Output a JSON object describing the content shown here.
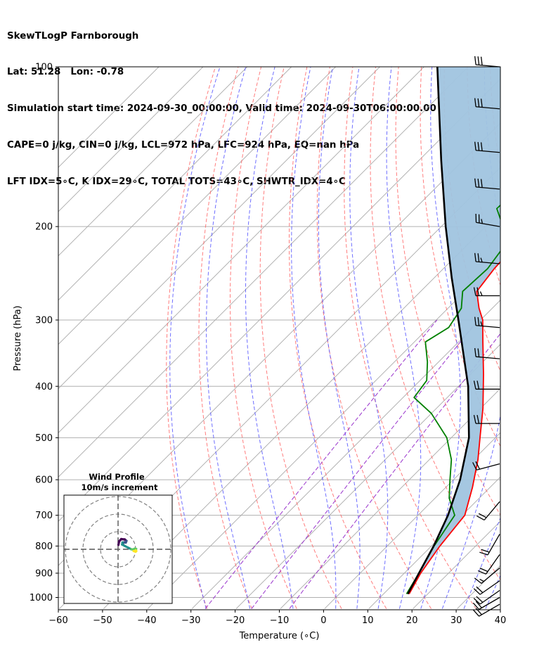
{
  "header": {
    "line1": "SkewTLogP Farnborough",
    "line2": "Lat: 51.28   Lon: -0.78",
    "line3": "Simulation start time: 2024-09-30_00:00:00, Valid time: 2024-09-30T06:00:00.00",
    "line4": "CAPE=0 j/kg, CIN=0 j/kg, LCL=972 hPa, LFC=924 hPa, EQ=nan hPa",
    "line5": "LFT IDX=5∘C, K IDX=29∘C, TOTAL TOTS=43∘C, SHWTR_IDX=4∘C"
  },
  "chart_data": {
    "type": "skewt-logp",
    "xlabel": "Temperature (∘C)",
    "ylabel": "Pressure (hPa)",
    "xlim": [
      -60,
      40
    ],
    "ylim": [
      1050,
      100
    ],
    "y_scale": "log",
    "grid": true,
    "x_ticks": [
      "−60",
      "−50",
      "−40",
      "−30",
      "−20",
      "−10",
      "0",
      "10",
      "20",
      "30",
      "40"
    ],
    "y_ticks": [
      100,
      200,
      300,
      400,
      500,
      600,
      700,
      800,
      900,
      1000
    ],
    "colors": {
      "temperature": "#ff0000",
      "dewpoint": "#008000",
      "parcel": "#000000",
      "cape_fill": "#a0c4df",
      "dry_adiabat": "#ff6666",
      "moist_adiabat": "#5555ff",
      "mixing_ratio": "#9933cc",
      "isotherm": "#aaaaaa"
    },
    "temperature": [
      {
        "p": 985,
        "t": 15.8
      },
      {
        "p": 900,
        "t": 13.7
      },
      {
        "p": 800,
        "t": 11.9
      },
      {
        "p": 700,
        "t": 10.6
      },
      {
        "p": 620,
        "t": 6.0
      },
      {
        "p": 550,
        "t": 1.0
      },
      {
        "p": 500,
        "t": -3.5
      },
      {
        "p": 440,
        "t": -9.5
      },
      {
        "p": 380,
        "t": -17.0
      },
      {
        "p": 330,
        "t": -24.5
      },
      {
        "p": 300,
        "t": -29.5
      },
      {
        "p": 285,
        "t": -33.0
      },
      {
        "p": 265,
        "t": -37.3
      },
      {
        "p": 240,
        "t": -38.5
      },
      {
        "p": 215,
        "t": -39.0
      },
      {
        "p": 190,
        "t": -39.5
      },
      {
        "p": 160,
        "t": -42.5
      },
      {
        "p": 130,
        "t": -46.0
      },
      {
        "p": 110,
        "t": -49.5
      },
      {
        "p": 100,
        "t": -51.5
      }
    ],
    "dewpoint": [
      {
        "p": 985,
        "t": 15.2
      },
      {
        "p": 900,
        "t": 13.3
      },
      {
        "p": 800,
        "t": 10.6
      },
      {
        "p": 700,
        "t": 8.3
      },
      {
        "p": 650,
        "t": 3.2
      },
      {
        "p": 600,
        "t": -0.8
      },
      {
        "p": 550,
        "t": -5.0
      },
      {
        "p": 500,
        "t": -11.0
      },
      {
        "p": 450,
        "t": -20.0
      },
      {
        "p": 420,
        "t": -27.5
      },
      {
        "p": 390,
        "t": -28.5
      },
      {
        "p": 360,
        "t": -32.5
      },
      {
        "p": 330,
        "t": -37.5
      },
      {
        "p": 310,
        "t": -35.5
      },
      {
        "p": 285,
        "t": -37.0
      },
      {
        "p": 265,
        "t": -40.5
      },
      {
        "p": 240,
        "t": -40.0
      },
      {
        "p": 215,
        "t": -41.5
      },
      {
        "p": 200,
        "t": -46.0
      },
      {
        "p": 185,
        "t": -51.5
      },
      {
        "p": 160,
        "t": -51.0
      },
      {
        "p": 130,
        "t": -56.0
      },
      {
        "p": 100,
        "t": -63.0
      }
    ],
    "parcel": [
      {
        "p": 985,
        "t": 15.5
      },
      {
        "p": 900,
        "t": 13.3
      },
      {
        "p": 800,
        "t": 10.5
      },
      {
        "p": 700,
        "t": 6.8
      },
      {
        "p": 600,
        "t": 1.5
      },
      {
        "p": 500,
        "t": -6.0
      },
      {
        "p": 400,
        "t": -17.8
      },
      {
        "p": 300,
        "t": -35.0
      },
      {
        "p": 250,
        "t": -46.0
      },
      {
        "p": 200,
        "t": -59.0
      },
      {
        "p": 150,
        "t": -75.0
      },
      {
        "p": 100,
        "t": -97.0
      }
    ],
    "winds": [
      {
        "p": 100,
        "speed_kt": 30,
        "dir": 275
      },
      {
        "p": 120,
        "speed_kt": 30,
        "dir": 275
      },
      {
        "p": 145,
        "speed_kt": 30,
        "dir": 275
      },
      {
        "p": 170,
        "speed_kt": 30,
        "dir": 275
      },
      {
        "p": 200,
        "speed_kt": 25,
        "dir": 280
      },
      {
        "p": 235,
        "speed_kt": 25,
        "dir": 275
      },
      {
        "p": 270,
        "speed_kt": 25,
        "dir": 270
      },
      {
        "p": 310,
        "speed_kt": 25,
        "dir": 275
      },
      {
        "p": 355,
        "speed_kt": 20,
        "dir": 275
      },
      {
        "p": 405,
        "speed_kt": 20,
        "dir": 270
      },
      {
        "p": 470,
        "speed_kt": 20,
        "dir": 270
      },
      {
        "p": 560,
        "speed_kt": 20,
        "dir": 255
      },
      {
        "p": 660,
        "speed_kt": 20,
        "dir": 220
      },
      {
        "p": 760,
        "speed_kt": 20,
        "dir": 210
      },
      {
        "p": 830,
        "speed_kt": 20,
        "dir": 215
      },
      {
        "p": 880,
        "speed_kt": 15,
        "dir": 230
      },
      {
        "p": 930,
        "speed_kt": 20,
        "dir": 235
      },
      {
        "p": 970,
        "speed_kt": 20,
        "dir": 235
      },
      {
        "p": 1000,
        "speed_kt": 20,
        "dir": 240
      },
      {
        "p": 1030,
        "speed_kt": 20,
        "dir": 240
      }
    ],
    "hodograph": {
      "title_line1": "Wind Profile",
      "title_line2": "10m/s increment",
      "ring_step_ms": 10,
      "path": [
        {
          "u": 0.2,
          "v": 2.5
        },
        {
          "u": 0.6,
          "v": 4.5
        },
        {
          "u": 1.8,
          "v": 5.8
        },
        {
          "u": 3.8,
          "v": 5.6
        },
        {
          "u": 4.8,
          "v": 4.8
        },
        {
          "u": 4.4,
          "v": 3.8
        },
        {
          "u": 3.5,
          "v": 4.0
        },
        {
          "u": 2.9,
          "v": 3.3
        },
        {
          "u": 2.5,
          "v": 3.9
        },
        {
          "u": 2.3,
          "v": 2.7
        },
        {
          "u": 4.0,
          "v": 1.8
        },
        {
          "u": 6.0,
          "v": 0.8
        },
        {
          "u": 7.5,
          "v": 0.0
        },
        {
          "u": 8.5,
          "v": -0.1
        },
        {
          "u": 9.5,
          "v": 0.4
        },
        {
          "u": 10.3,
          "v": 0.2
        },
        {
          "u": 10.0,
          "v": -0.6
        },
        {
          "u": 10.4,
          "v": -1.0
        },
        {
          "u": 10.0,
          "v": -1.4
        },
        {
          "u": 8.8,
          "v": -1.0
        }
      ],
      "path_colors": [
        "#440154",
        "#3b528b",
        "#21918c",
        "#5ec962",
        "#fde725"
      ]
    }
  }
}
